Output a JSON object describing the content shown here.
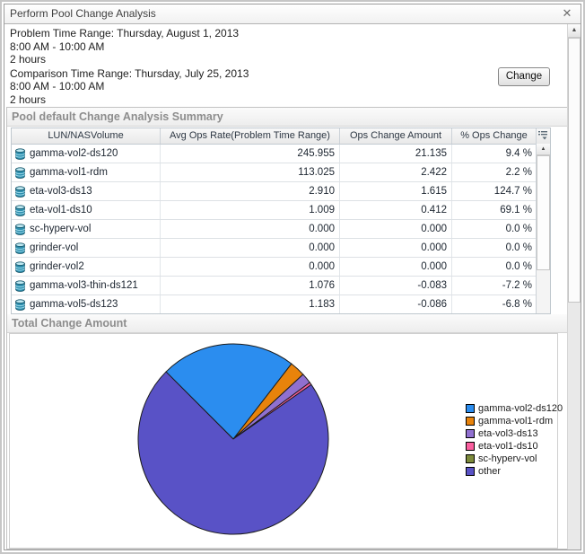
{
  "window": {
    "title": "Perform Pool Change Analysis"
  },
  "icons": {
    "close": "✕",
    "scroll_up": "▲",
    "row_icon": "database-cylinder",
    "header_menu_icon": "column-chooser"
  },
  "time_ranges": {
    "problem": {
      "label": "Problem Time Range: Thursday, August 1, 2013",
      "hours": "8:00 AM - 10:00 AM",
      "duration": "2 hours"
    },
    "comparison": {
      "label": "Comparison Time Range: Thursday, July 25, 2013",
      "hours": "8:00 AM - 10:00 AM",
      "duration": "2 hours"
    }
  },
  "buttons": {
    "change": "Change"
  },
  "summary_panel": {
    "title": "Pool default Change Analysis Summary",
    "columns": [
      "LUN/NASVolume",
      "Avg Ops Rate(Problem Time Range)",
      "Ops Change Amount",
      "% Ops Change"
    ],
    "rows": [
      {
        "name": "gamma-vol2-ds120",
        "avg_ops_rate": "245.955",
        "ops_change_amount": "21.135",
        "pct_ops_change": "9.4 %"
      },
      {
        "name": "gamma-vol1-rdm",
        "avg_ops_rate": "113.025",
        "ops_change_amount": "2.422",
        "pct_ops_change": "2.2 %"
      },
      {
        "name": "eta-vol3-ds13",
        "avg_ops_rate": "2.910",
        "ops_change_amount": "1.615",
        "pct_ops_change": "124.7 %"
      },
      {
        "name": "eta-vol1-ds10",
        "avg_ops_rate": "1.009",
        "ops_change_amount": "0.412",
        "pct_ops_change": "69.1 %"
      },
      {
        "name": "sc-hyperv-vol",
        "avg_ops_rate": "0.000",
        "ops_change_amount": "0.000",
        "pct_ops_change": "0.0 %"
      },
      {
        "name": "grinder-vol",
        "avg_ops_rate": "0.000",
        "ops_change_amount": "0.000",
        "pct_ops_change": "0.0 %"
      },
      {
        "name": "grinder-vol2",
        "avg_ops_rate": "0.000",
        "ops_change_amount": "0.000",
        "pct_ops_change": "0.0 %"
      },
      {
        "name": "gamma-vol3-thin-ds121",
        "avg_ops_rate": "1.076",
        "ops_change_amount": "-0.083",
        "pct_ops_change": "-7.2 %"
      },
      {
        "name": "gamma-vol5-ds123",
        "avg_ops_rate": "1.183",
        "ops_change_amount": "-0.086",
        "pct_ops_change": "-6.8 %"
      }
    ]
  },
  "total_panel": {
    "title": "Total Change Amount"
  },
  "chart_data": {
    "type": "pie",
    "title": "Total Change Amount",
    "labels": [
      "gamma-vol2-ds120",
      "gamma-vol1-rdm",
      "eta-vol3-ds13",
      "eta-vol1-ds10",
      "sc-hyperv-vol",
      "other"
    ],
    "values": [
      21.135,
      2.422,
      1.615,
      0.412,
      0.0,
      66.4
    ],
    "colors": [
      "#2b8def",
      "#e8830b",
      "#9070d0",
      "#fa5f9f",
      "#7d8b3c",
      "#5952c6"
    ],
    "start_angle_deg": 135,
    "direction": "clockwise",
    "legend_position": "right",
    "outline_color": "#1b1b1b"
  }
}
